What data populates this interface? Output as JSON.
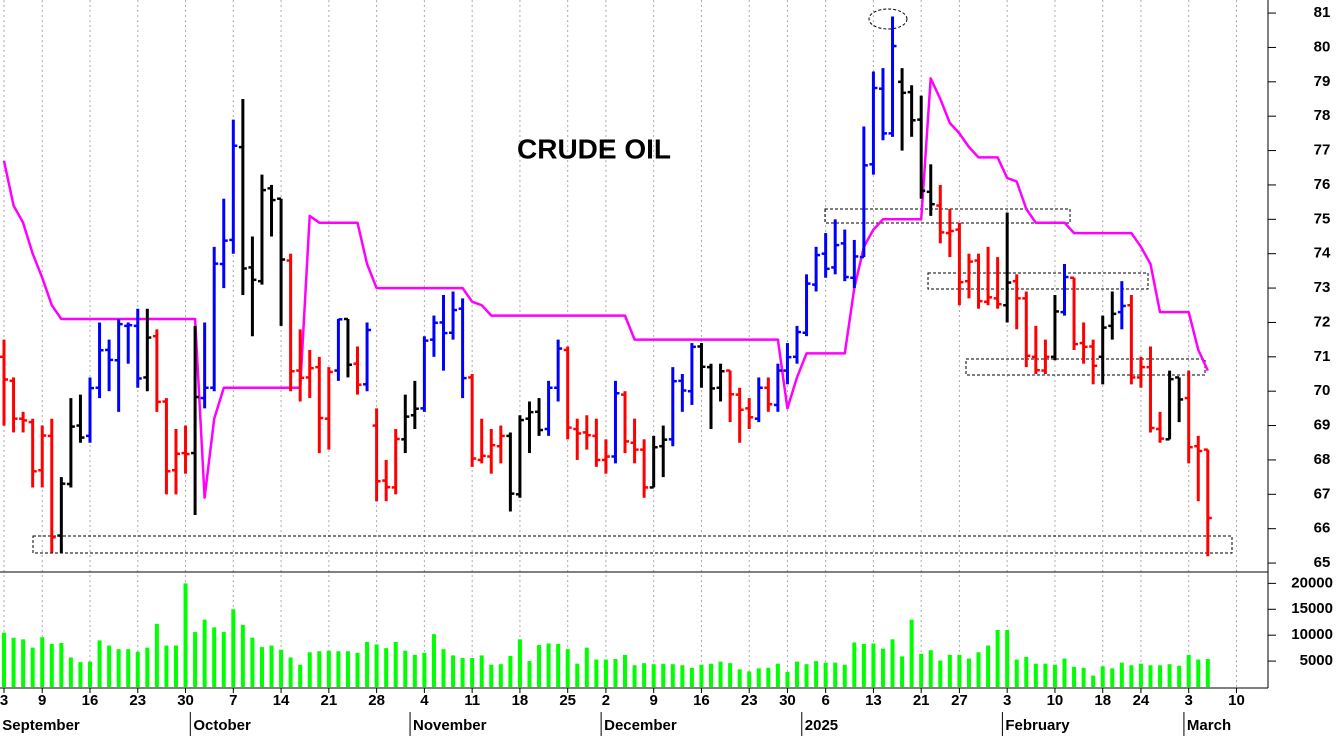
{
  "chart_data": {
    "type": "ohlc",
    "title": "CRUDE OIL",
    "xlim": [
      -0.42,
      132.3
    ],
    "xticks": [
      {
        "value": 0,
        "label": "3"
      },
      {
        "value": 4,
        "label": "9"
      },
      {
        "value": 9,
        "label": "16"
      },
      {
        "value": 14,
        "label": "23"
      },
      {
        "value": 19,
        "label": "30"
      },
      {
        "value": 24,
        "label": "7"
      },
      {
        "value": 29,
        "label": "14"
      },
      {
        "value": 34,
        "label": "21"
      },
      {
        "value": 39,
        "label": "28"
      },
      {
        "value": 44,
        "label": "4"
      },
      {
        "value": 49,
        "label": "11"
      },
      {
        "value": 54,
        "label": "18"
      },
      {
        "value": 59,
        "label": "25"
      },
      {
        "value": 63,
        "label": "2"
      },
      {
        "value": 68,
        "label": "9"
      },
      {
        "value": 73,
        "label": "16"
      },
      {
        "value": 78,
        "label": "23"
      },
      {
        "value": 82,
        "label": "30"
      },
      {
        "value": 86,
        "label": "6"
      },
      {
        "value": 91,
        "label": "13"
      },
      {
        "value": 96,
        "label": "21"
      },
      {
        "value": 100,
        "label": "27"
      },
      {
        "value": 105,
        "label": "3"
      },
      {
        "value": 110,
        "label": "10"
      },
      {
        "value": 115,
        "label": "18"
      },
      {
        "value": 119,
        "label": "24"
      },
      {
        "value": 124,
        "label": "3"
      },
      {
        "value": 129,
        "label": "10"
      }
    ],
    "month_ticks": [
      {
        "value": 0,
        "label": "September"
      },
      {
        "value": 20,
        "label": "October"
      },
      {
        "value": 43,
        "label": "November"
      },
      {
        "value": 63,
        "label": "December"
      },
      {
        "value": 84,
        "label": "2025"
      },
      {
        "value": 105,
        "label": "February"
      },
      {
        "value": 124,
        "label": "March"
      }
    ],
    "ylim": [
      64.74,
      81.38
    ],
    "yticks": [
      65,
      66,
      67,
      68,
      69,
      70,
      71,
      72,
      73,
      74,
      75,
      76,
      77,
      78,
      79,
      80,
      81
    ],
    "open": [
      71.0,
      70.3,
      69.2,
      69.1,
      67.7,
      68.7,
      65.8,
      67.3,
      69.0,
      68.7,
      70.1,
      71.2,
      70.9,
      71.9,
      71.9,
      70.4,
      71.6,
      69.7,
      67.7,
      68.2,
      68.2,
      69.8,
      70.1,
      73.7,
      74.4,
      77.1,
      73.6,
      73.2,
      75.9,
      75.6,
      73.8,
      70.6,
      70.4,
      70.7,
      69.2,
      70.6,
      72.1,
      70.8,
      70.2,
      69.0,
      67.4,
      67.2,
      68.6,
      69.3,
      69.5,
      71.5,
      72.0,
      71.7,
      72.4,
      70.4,
      68.0,
      68.1,
      68.4,
      68.7,
      67.0,
      69.2,
      69.4,
      68.9,
      70.1,
      71.2,
      68.9,
      68.8,
      68.7,
      68.0,
      68.1,
      69.9,
      68.5,
      68.3,
      67.2,
      68.4,
      68.6,
      70.3,
      70.0,
      71.3,
      70.7,
      70.1,
      70.6,
      69.9,
      69.5,
      69.2,
      70.1,
      69.6,
      70.6,
      71.0,
      71.7,
      73.1,
      74.0,
      73.6,
      74.3,
      73.3,
      73.9,
      76.6,
      78.8,
      77.5,
      79.0,
      78.7,
      77.9,
      75.8,
      75.4,
      74.6,
      74.7,
      73.2,
      73.8,
      72.6,
      72.7,
      72.5,
      73.2,
      72.7,
      71.0,
      70.6,
      71.0,
      72.3,
      73.3,
      71.4,
      71.3,
      71.0,
      71.9,
      72.3,
      72.5,
      70.4,
      70.7,
      68.9,
      68.6,
      70.4,
      69.8,
      68.4,
      68.3
    ],
    "high": [
      71.5,
      70.4,
      69.4,
      69.2,
      69.0,
      69.2,
      67.5,
      69.8,
      69.9,
      70.4,
      72.0,
      71.5,
      72.1,
      72.0,
      72.4,
      72.4,
      71.8,
      69.8,
      68.9,
      69.0,
      71.9,
      72.0,
      74.2,
      75.6,
      77.9,
      78.5,
      74.5,
      76.3,
      76.0,
      75.6,
      74.0,
      71.8,
      71.2,
      71.0,
      70.7,
      72.1,
      72.1,
      71.3,
      72.0,
      69.5,
      68.0,
      68.9,
      69.9,
      70.3,
      71.6,
      72.2,
      72.8,
      72.9,
      72.7,
      70.5,
      69.2,
      68.9,
      69.0,
      68.8,
      69.3,
      69.7,
      69.8,
      70.3,
      71.5,
      71.3,
      69.2,
      69.3,
      69.2,
      68.6,
      70.3,
      70.0,
      69.2,
      68.6,
      68.7,
      69.0,
      70.7,
      70.5,
      71.4,
      71.4,
      70.8,
      70.8,
      70.6,
      70.1,
      69.8,
      70.4,
      70.4,
      70.8,
      71.4,
      71.9,
      73.4,
      74.2,
      74.6,
      75.0,
      74.7,
      74.4,
      77.7,
      79.3,
      79.4,
      80.9,
      79.4,
      78.9,
      78.6,
      76.6,
      76.0,
      75.3,
      74.9,
      74.0,
      74.0,
      74.2,
      73.9,
      75.2,
      73.4,
      72.9,
      71.9,
      71.5,
      72.8,
      73.7,
      73.3,
      72.0,
      71.5,
      72.2,
      72.9,
      73.2,
      72.8,
      71.0,
      71.3,
      69.4,
      70.6,
      70.4,
      70.6,
      68.7,
      68.3
    ],
    "low": [
      69.0,
      68.8,
      68.8,
      67.2,
      67.2,
      65.3,
      65.3,
      67.2,
      68.5,
      68.5,
      69.8,
      70.0,
      69.4,
      70.8,
      70.1,
      70.0,
      69.4,
      67.0,
      67.0,
      67.6,
      66.4,
      69.5,
      70.0,
      73.0,
      74.0,
      72.8,
      71.6,
      73.1,
      74.5,
      71.9,
      70.0,
      69.7,
      69.8,
      68.2,
      68.3,
      70.3,
      70.4,
      69.9,
      70.0,
      66.8,
      66.8,
      67.0,
      68.2,
      68.9,
      69.4,
      71.0,
      70.6,
      71.5,
      69.8,
      67.8,
      67.9,
      67.6,
      67.9,
      66.5,
      66.9,
      68.2,
      68.7,
      68.7,
      69.7,
      68.6,
      68.0,
      68.3,
      67.8,
      67.6,
      67.9,
      68.2,
      67.9,
      66.9,
      67.2,
      67.5,
      68.4,
      69.4,
      69.6,
      70.1,
      68.9,
      69.7,
      69.1,
      68.5,
      68.9,
      69.1,
      69.4,
      69.4,
      70.2,
      70.8,
      71.6,
      72.9,
      73.3,
      73.4,
      73.2,
      73.0,
      73.9,
      76.3,
      77.3,
      77.4,
      77.0,
      77.4,
      75.6,
      75.1,
      74.3,
      73.9,
      72.5,
      72.7,
      72.4,
      72.5,
      72.4,
      72.0,
      71.8,
      70.7,
      70.5,
      70.5,
      70.9,
      72.2,
      71.2,
      70.8,
      70.2,
      70.2,
      71.5,
      71.8,
      70.2,
      70.1,
      68.8,
      68.5,
      68.6,
      69.1,
      67.9,
      66.8,
      65.2
    ],
    "close": [
      70.34,
      69.2,
      69.15,
      67.67,
      68.71,
      65.75,
      67.31,
      68.97,
      68.65,
      70.09,
      71.19,
      70.91,
      71.95,
      71.92,
      70.37,
      71.56,
      69.69,
      67.67,
      68.18,
      68.17,
      69.83,
      70.1,
      73.71,
      74.38,
      77.14,
      73.57,
      73.24,
      75.85,
      75.56,
      73.83,
      70.58,
      70.39,
      70.67,
      69.22,
      70.56,
      72.09,
      70.77,
      70.19,
      71.78,
      67.38,
      67.21,
      68.61,
      69.26,
      69.49,
      71.47,
      71.99,
      71.69,
      72.36,
      70.38,
      68.04,
      68.12,
      68.43,
      68.7,
      67.02,
      69.16,
      69.39,
      68.87,
      70.1,
      71.24,
      68.94,
      68.77,
      68.72,
      68.0,
      68.1,
      69.94,
      68.54,
      68.3,
      67.2,
      68.37,
      68.59,
      70.29,
      70.02,
      71.29,
      70.71,
      70.08,
      70.58,
      69.91,
      69.46,
      69.24,
      70.1,
      69.62,
      70.6,
      70.99,
      71.72,
      73.13,
      73.96,
      73.56,
      74.25,
      73.32,
      73.92,
      76.57,
      78.82,
      77.5,
      80.04,
      78.68,
      77.88,
      75.83,
      75.44,
      74.62,
      74.66,
      73.17,
      73.77,
      72.62,
      72.73,
      72.53,
      73.16,
      72.7,
      71.03,
      70.61,
      71.0,
      72.32,
      73.32,
      71.37,
      71.29,
      70.74,
      71.85,
      72.25,
      72.48,
      70.4,
      70.7,
      68.93,
      68.62,
      70.35,
      69.76,
      68.37,
      68.26,
      66.31
    ],
    "colors": [
      "#ff0000",
      "#ff0000",
      "#ff0000",
      "#ff0000",
      "#ff0000",
      "#ff0000",
      "#000000",
      "#000000",
      "#000000",
      "#0000ff",
      "#0000ff",
      "#0000ff",
      "#0000ff",
      "#0000ff",
      "#0000ff",
      "#000000",
      "#ff0000",
      "#ff0000",
      "#ff0000",
      "#ff0000",
      "#000000",
      "#0000ff",
      "#0000ff",
      "#0000ff",
      "#0000ff",
      "#000000",
      "#000000",
      "#000000",
      "#000000",
      "#000000",
      "#ff0000",
      "#ff0000",
      "#ff0000",
      "#ff0000",
      "#ff0000",
      "#0000ff",
      "#000000",
      "#ff0000",
      "#0000ff",
      "#ff0000",
      "#ff0000",
      "#ff0000",
      "#000000",
      "#000000",
      "#0000ff",
      "#0000ff",
      "#0000ff",
      "#0000ff",
      "#0000ff",
      "#ff0000",
      "#ff0000",
      "#ff0000",
      "#ff0000",
      "#000000",
      "#000000",
      "#000000",
      "#000000",
      "#0000ff",
      "#0000ff",
      "#ff0000",
      "#ff0000",
      "#ff0000",
      "#ff0000",
      "#ff0000",
      "#0000ff",
      "#ff0000",
      "#ff0000",
      "#ff0000",
      "#000000",
      "#000000",
      "#0000ff",
      "#0000ff",
      "#0000ff",
      "#000000",
      "#000000",
      "#000000",
      "#ff0000",
      "#ff0000",
      "#ff0000",
      "#0000ff",
      "#ff0000",
      "#0000ff",
      "#0000ff",
      "#0000ff",
      "#0000ff",
      "#0000ff",
      "#0000ff",
      "#0000ff",
      "#0000ff",
      "#0000ff",
      "#0000ff",
      "#0000ff",
      "#0000ff",
      "#0000ff",
      "#000000",
      "#000000",
      "#000000",
      "#000000",
      "#ff0000",
      "#ff0000",
      "#ff0000",
      "#ff0000",
      "#ff0000",
      "#ff0000",
      "#ff0000",
      "#000000",
      "#ff0000",
      "#ff0000",
      "#ff0000",
      "#ff0000",
      "#000000",
      "#0000ff",
      "#ff0000",
      "#ff0000",
      "#ff0000",
      "#000000",
      "#000000",
      "#0000ff",
      "#ff0000",
      "#ff0000",
      "#ff0000",
      "#ff0000",
      "#000000",
      "#000000",
      "#ff0000",
      "#ff0000",
      "#ff0000"
    ],
    "stop": {
      "color": "#ff00ff",
      "values": [
        76.7,
        75.4,
        74.9,
        74.0,
        73.3,
        72.5,
        72.1,
        72.1,
        72.1,
        72.1,
        72.1,
        72.1,
        72.1,
        72.1,
        72.1,
        72.1,
        72.1,
        72.1,
        72.1,
        72.1,
        72.1,
        66.9,
        69.2,
        70.1,
        70.1,
        70.1,
        70.1,
        70.1,
        70.1,
        70.1,
        70.1,
        70.1,
        75.1,
        74.9,
        74.9,
        74.9,
        74.9,
        74.9,
        73.7,
        73.0,
        73.0,
        73.0,
        73.0,
        73.0,
        73.0,
        73.0,
        73.0,
        73.0,
        73.0,
        72.6,
        72.5,
        72.2,
        72.2,
        72.2,
        72.2,
        72.2,
        72.2,
        72.2,
        72.2,
        72.2,
        72.2,
        72.2,
        72.2,
        72.2,
        72.2,
        72.2,
        71.5,
        71.5,
        71.5,
        71.5,
        71.5,
        71.5,
        71.5,
        71.5,
        71.5,
        71.5,
        71.5,
        71.5,
        71.5,
        71.5,
        71.5,
        71.5,
        69.5,
        70.4,
        71.1,
        71.1,
        71.1,
        71.1,
        71.1,
        73.0,
        74.2,
        74.7,
        75.0,
        75.0,
        75.0,
        75.0,
        75.0,
        79.1,
        78.5,
        77.8,
        77.5,
        77.1,
        76.8,
        76.8,
        76.8,
        76.2,
        76.1,
        75.3,
        74.9,
        74.9,
        74.9,
        74.9,
        74.6,
        74.6,
        74.6,
        74.6,
        74.6,
        74.6,
        74.6,
        74.2,
        73.7,
        72.3,
        72.3,
        72.3,
        72.3,
        71.2,
        70.6
      ]
    },
    "volume": {
      "color": "#00ff00",
      "ylim": [
        0,
        22000
      ],
      "yticks": [
        5000,
        10000,
        15000,
        20000
      ],
      "values": [
        10500,
        9500,
        9200,
        7600,
        9600,
        8300,
        8500,
        5700,
        4800,
        4900,
        9000,
        8000,
        7300,
        7300,
        6800,
        7600,
        12200,
        8000,
        8000,
        20000,
        10600,
        13000,
        11500,
        10600,
        15000,
        12000,
        9500,
        7700,
        8000,
        7200,
        5700,
        4300,
        6700,
        6900,
        7000,
        6900,
        6900,
        6600,
        8700,
        8200,
        7500,
        8700,
        7000,
        6200,
        6600,
        10200,
        7300,
        6100,
        5600,
        5600,
        6100,
        4300,
        4400,
        6000,
        9200,
        5000,
        8100,
        8400,
        8300,
        7300,
        4500,
        7600,
        5300,
        5300,
        5400,
        6200,
        4200,
        4600,
        4400,
        4500,
        4400,
        4200,
        3700,
        4300,
        4500,
        4900,
        4600,
        3400,
        3000,
        3600,
        3700,
        4500,
        2900,
        4900,
        4400,
        5000,
        4700,
        4700,
        4300,
        8600,
        8300,
        8400,
        7400,
        9200,
        5900,
        13000,
        6400,
        7100,
        5100,
        6200,
        6200,
        5500,
        6700,
        8000,
        11000,
        11000,
        5300,
        5800,
        4500,
        4500,
        4300,
        5500,
        3900,
        3700,
        2200,
        4000,
        3600,
        4700,
        4200,
        4500,
        4200,
        4200,
        4400,
        4100,
        6200,
        5300,
        5400
      ]
    }
  }
}
